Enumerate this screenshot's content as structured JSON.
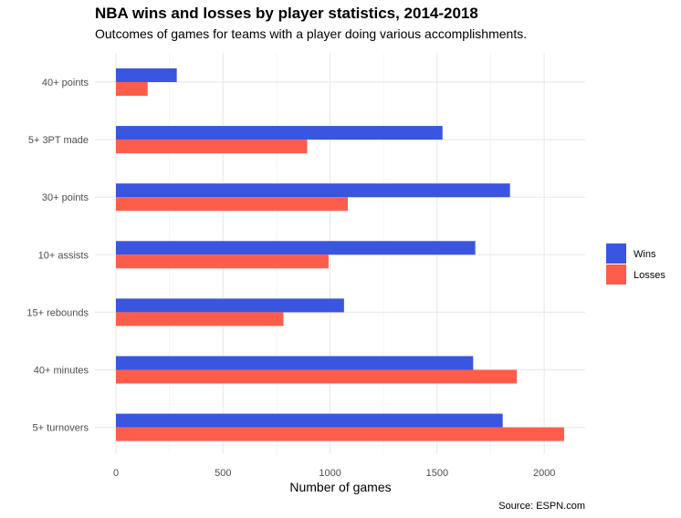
{
  "chart_data": {
    "type": "bar",
    "orientation": "horizontal",
    "title": "NBA wins and losses by player statistics, 2014-2018",
    "subtitle": "Outcomes of games for teams with a player doing various accomplishments.",
    "categories": [
      "40+ points",
      "5+ 3PT made",
      "30+ points",
      "10+ assists",
      "15+ rebounds",
      "40+ minutes",
      "5+ turnovers"
    ],
    "series": [
      {
        "name": "Wins",
        "color": "#3a55e0",
        "values": [
          284,
          1525,
          1840,
          1678,
          1065,
          1668,
          1806
        ]
      },
      {
        "name": "Losses",
        "color": "#fe5d4c",
        "values": [
          148,
          893,
          1083,
          993,
          782,
          1872,
          2093
        ]
      }
    ],
    "xlabel": "Number of games",
    "ylabel": "",
    "xlim": [
      0,
      2200
    ],
    "xticks": [
      "0",
      "500",
      "1000",
      "1500",
      "2000"
    ],
    "legend_position": "right",
    "grid": true,
    "caption": "Source: ESPN.com"
  }
}
